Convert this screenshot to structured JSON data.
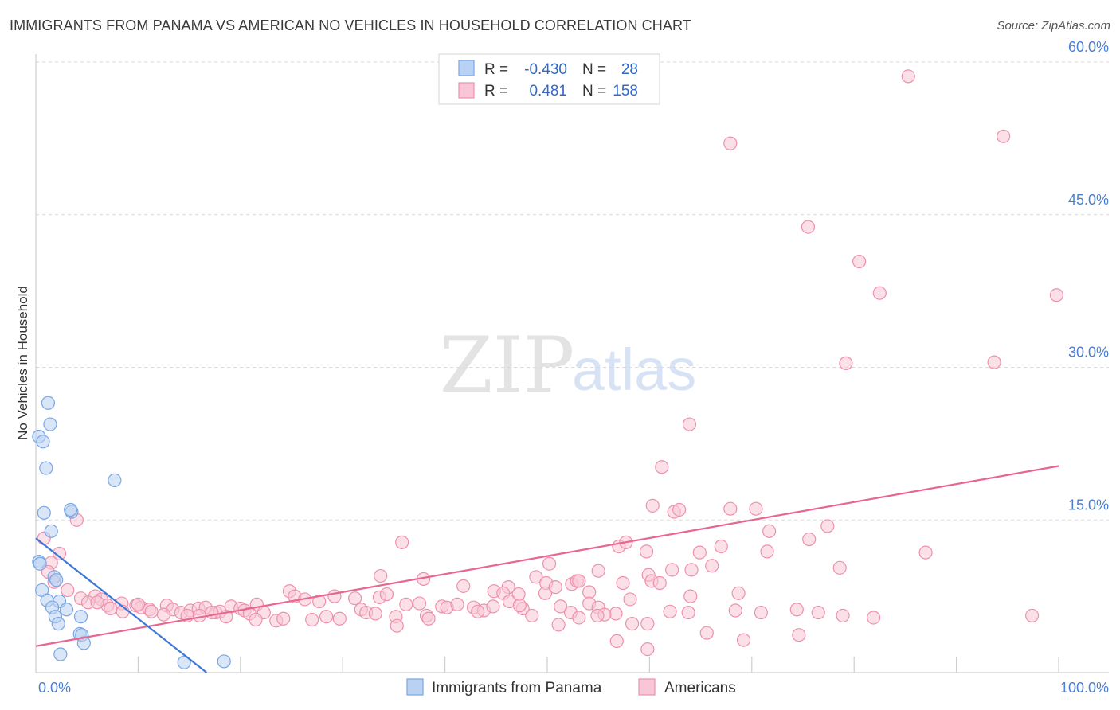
{
  "header": {
    "title": "IMMIGRANTS FROM PANAMA VS AMERICAN NO VEHICLES IN HOUSEHOLD CORRELATION CHART",
    "source": "Source: ZipAtlas.com"
  },
  "watermark": {
    "zip": "ZIP",
    "atlas": "atlas"
  },
  "colors": {
    "blue_fill": "#b9d2f3",
    "blue_stroke": "#7aa6e3",
    "blue_line": "#3d78d6",
    "pink_fill": "#f8c6d6",
    "pink_stroke": "#ee90ac",
    "pink_line": "#e8668f",
    "grid": "#d9d9d9",
    "tick_text": "#4a7fd4"
  },
  "stats": {
    "row1": {
      "r_label": "R =",
      "r_value": "-0.430",
      "n_label": "N =",
      "n_value": "28"
    },
    "row2": {
      "r_label": "R =",
      "r_value": "0.481",
      "n_label": "N =",
      "n_value": "158"
    }
  },
  "chart_data": {
    "type": "scatter",
    "title": "IMMIGRANTS FROM PANAMA VS AMERICAN NO VEHICLES IN HOUSEHOLD CORRELATION CHART",
    "xlabel": "",
    "ylabel": "No Vehicles in Household",
    "xlim": [
      0,
      100
    ],
    "ylim": [
      0,
      60
    ],
    "x_tick_labels": [
      "0.0%",
      "100.0%"
    ],
    "y_ticks": [
      15,
      30,
      45,
      60
    ],
    "y_tick_labels": [
      "15.0%",
      "30.0%",
      "45.0%",
      "60.0%"
    ],
    "grid": true,
    "legend_position": "bottom-center",
    "series": [
      {
        "name": "Immigrants from Panama",
        "color": "blue",
        "r": -0.43,
        "n": 28,
        "trend": {
          "x": [
            0.0,
            16.7
          ],
          "y": [
            13.2,
            0.0
          ]
        },
        "points": [
          [
            0.3,
            23.2
          ],
          [
            0.7,
            22.7
          ],
          [
            1.2,
            26.5
          ],
          [
            1.4,
            24.4
          ],
          [
            1.0,
            20.1
          ],
          [
            7.7,
            18.9
          ],
          [
            0.8,
            15.7
          ],
          [
            3.5,
            15.8
          ],
          [
            3.4,
            16.0
          ],
          [
            1.5,
            13.9
          ],
          [
            0.3,
            10.9
          ],
          [
            0.4,
            10.7
          ],
          [
            1.8,
            9.4
          ],
          [
            2.0,
            9.1
          ],
          [
            0.6,
            8.1
          ],
          [
            1.1,
            7.1
          ],
          [
            2.3,
            7.0
          ],
          [
            1.6,
            6.4
          ],
          [
            3.0,
            6.2
          ],
          [
            1.9,
            5.5
          ],
          [
            2.2,
            4.8
          ],
          [
            4.4,
            5.5
          ],
          [
            4.3,
            3.8
          ],
          [
            4.5,
            3.7
          ],
          [
            4.7,
            2.9
          ],
          [
            2.4,
            1.8
          ],
          [
            14.5,
            1.0
          ],
          [
            18.4,
            1.1
          ]
        ]
      },
      {
        "name": "Americans",
        "color": "pink",
        "r": 0.481,
        "n": 158,
        "trend": {
          "x": [
            0.0,
            100.0
          ],
          "y": [
            2.6,
            20.3
          ]
        },
        "points": [
          [
            85.3,
            58.6
          ],
          [
            67.9,
            52.0
          ],
          [
            94.6,
            52.7
          ],
          [
            75.5,
            43.8
          ],
          [
            80.5,
            40.4
          ],
          [
            82.5,
            37.3
          ],
          [
            99.8,
            37.1
          ],
          [
            79.2,
            30.4
          ],
          [
            93.7,
            30.5
          ],
          [
            63.9,
            24.4
          ],
          [
            61.2,
            20.2
          ],
          [
            60.3,
            16.4
          ],
          [
            62.4,
            15.8
          ],
          [
            62.9,
            16.0
          ],
          [
            67.9,
            16.1
          ],
          [
            70.4,
            16.1
          ],
          [
            4.0,
            15.0
          ],
          [
            77.4,
            14.4
          ],
          [
            0.8,
            13.2
          ],
          [
            71.7,
            13.9
          ],
          [
            75.6,
            13.1
          ],
          [
            57.0,
            12.4
          ],
          [
            57.7,
            12.8
          ],
          [
            35.8,
            12.8
          ],
          [
            59.7,
            11.9
          ],
          [
            64.9,
            11.8
          ],
          [
            67.0,
            12.4
          ],
          [
            71.5,
            11.9
          ],
          [
            87.0,
            11.8
          ],
          [
            2.3,
            11.7
          ],
          [
            1.5,
            10.8
          ],
          [
            66.1,
            10.5
          ],
          [
            50.2,
            10.7
          ],
          [
            62.2,
            10.1
          ],
          [
            78.6,
            10.3
          ],
          [
            1.2,
            9.9
          ],
          [
            64.1,
            10.1
          ],
          [
            55.0,
            10.0
          ],
          [
            59.9,
            9.6
          ],
          [
            60.2,
            9.0
          ],
          [
            48.9,
            9.4
          ],
          [
            37.9,
            9.2
          ],
          [
            33.7,
            9.5
          ],
          [
            52.4,
            8.7
          ],
          [
            52.9,
            9.0
          ],
          [
            1.8,
            8.9
          ],
          [
            41.8,
            8.5
          ],
          [
            46.2,
            8.4
          ],
          [
            44.8,
            8.0
          ],
          [
            45.7,
            7.8
          ],
          [
            57.4,
            8.8
          ],
          [
            53.1,
            9.0
          ],
          [
            49.9,
            8.8
          ],
          [
            54.1,
            7.9
          ],
          [
            68.7,
            7.8
          ],
          [
            61.0,
            8.8
          ],
          [
            58.1,
            7.2
          ],
          [
            3.1,
            8.1
          ],
          [
            4.4,
            7.3
          ],
          [
            5.8,
            7.5
          ],
          [
            6.4,
            7.2
          ],
          [
            5.1,
            6.9
          ],
          [
            7.0,
            6.6
          ],
          [
            6.0,
            6.9
          ],
          [
            8.4,
            6.8
          ],
          [
            7.3,
            6.3
          ],
          [
            9.8,
            6.6
          ],
          [
            10.3,
            6.4
          ],
          [
            11.1,
            6.2
          ],
          [
            12.8,
            6.6
          ],
          [
            11.3,
            6.0
          ],
          [
            13.4,
            6.2
          ],
          [
            14.2,
            5.9
          ],
          [
            15.1,
            6.1
          ],
          [
            15.9,
            6.3
          ],
          [
            16.6,
            6.4
          ],
          [
            17.6,
            5.9
          ],
          [
            18.0,
            6.0
          ],
          [
            19.1,
            6.5
          ],
          [
            20.0,
            6.3
          ],
          [
            20.4,
            6.1
          ],
          [
            21.6,
            6.7
          ],
          [
            22.3,
            5.9
          ],
          [
            24.8,
            8.0
          ],
          [
            25.3,
            7.5
          ],
          [
            26.3,
            7.2
          ],
          [
            27.7,
            7.0
          ],
          [
            29.2,
            7.5
          ],
          [
            31.2,
            7.3
          ],
          [
            31.8,
            6.2
          ],
          [
            33.6,
            7.4
          ],
          [
            34.3,
            7.7
          ],
          [
            35.2,
            5.5
          ],
          [
            36.2,
            6.7
          ],
          [
            38.2,
            5.6
          ],
          [
            37.5,
            6.8
          ],
          [
            39.7,
            6.5
          ],
          [
            42.8,
            6.4
          ],
          [
            43.8,
            6.1
          ],
          [
            47.6,
            6.3
          ],
          [
            47.2,
            7.7
          ],
          [
            49.8,
            7.8
          ],
          [
            50.8,
            8.4
          ],
          [
            51.3,
            6.5
          ],
          [
            54.1,
            6.8
          ],
          [
            55.0,
            6.4
          ],
          [
            56.7,
            5.8
          ],
          [
            55.6,
            5.7
          ],
          [
            8.5,
            6.0
          ],
          [
            10.0,
            6.7
          ],
          [
            12.5,
            5.7
          ],
          [
            14.8,
            5.6
          ],
          [
            16.0,
            5.6
          ],
          [
            17.2,
            5.9
          ],
          [
            18.6,
            5.5
          ],
          [
            20.9,
            5.8
          ],
          [
            21.5,
            5.2
          ],
          [
            23.5,
            5.1
          ],
          [
            24.2,
            5.3
          ],
          [
            27.0,
            5.2
          ],
          [
            28.4,
            5.5
          ],
          [
            29.7,
            5.3
          ],
          [
            32.3,
            5.9
          ],
          [
            33.2,
            5.8
          ],
          [
            35.3,
            4.6
          ],
          [
            38.4,
            5.3
          ],
          [
            40.2,
            6.4
          ],
          [
            41.2,
            6.7
          ],
          [
            43.2,
            6.0
          ],
          [
            44.7,
            6.5
          ],
          [
            46.3,
            7.0
          ],
          [
            47.3,
            6.6
          ],
          [
            48.5,
            5.6
          ],
          [
            51.1,
            4.7
          ],
          [
            52.3,
            5.9
          ],
          [
            53.1,
            5.4
          ],
          [
            54.9,
            5.6
          ],
          [
            58.3,
            4.8
          ],
          [
            59.8,
            4.8
          ],
          [
            63.8,
            5.9
          ],
          [
            65.6,
            3.9
          ],
          [
            68.4,
            6.1
          ],
          [
            70.9,
            5.9
          ],
          [
            74.4,
            6.2
          ],
          [
            76.5,
            5.9
          ],
          [
            78.9,
            5.6
          ],
          [
            81.9,
            5.4
          ],
          [
            97.4,
            5.6
          ],
          [
            69.2,
            3.2
          ],
          [
            56.8,
            3.1
          ],
          [
            74.6,
            3.7
          ],
          [
            59.8,
            2.3
          ],
          [
            62.0,
            6.0
          ],
          [
            64.0,
            7.5
          ]
        ]
      }
    ]
  }
}
